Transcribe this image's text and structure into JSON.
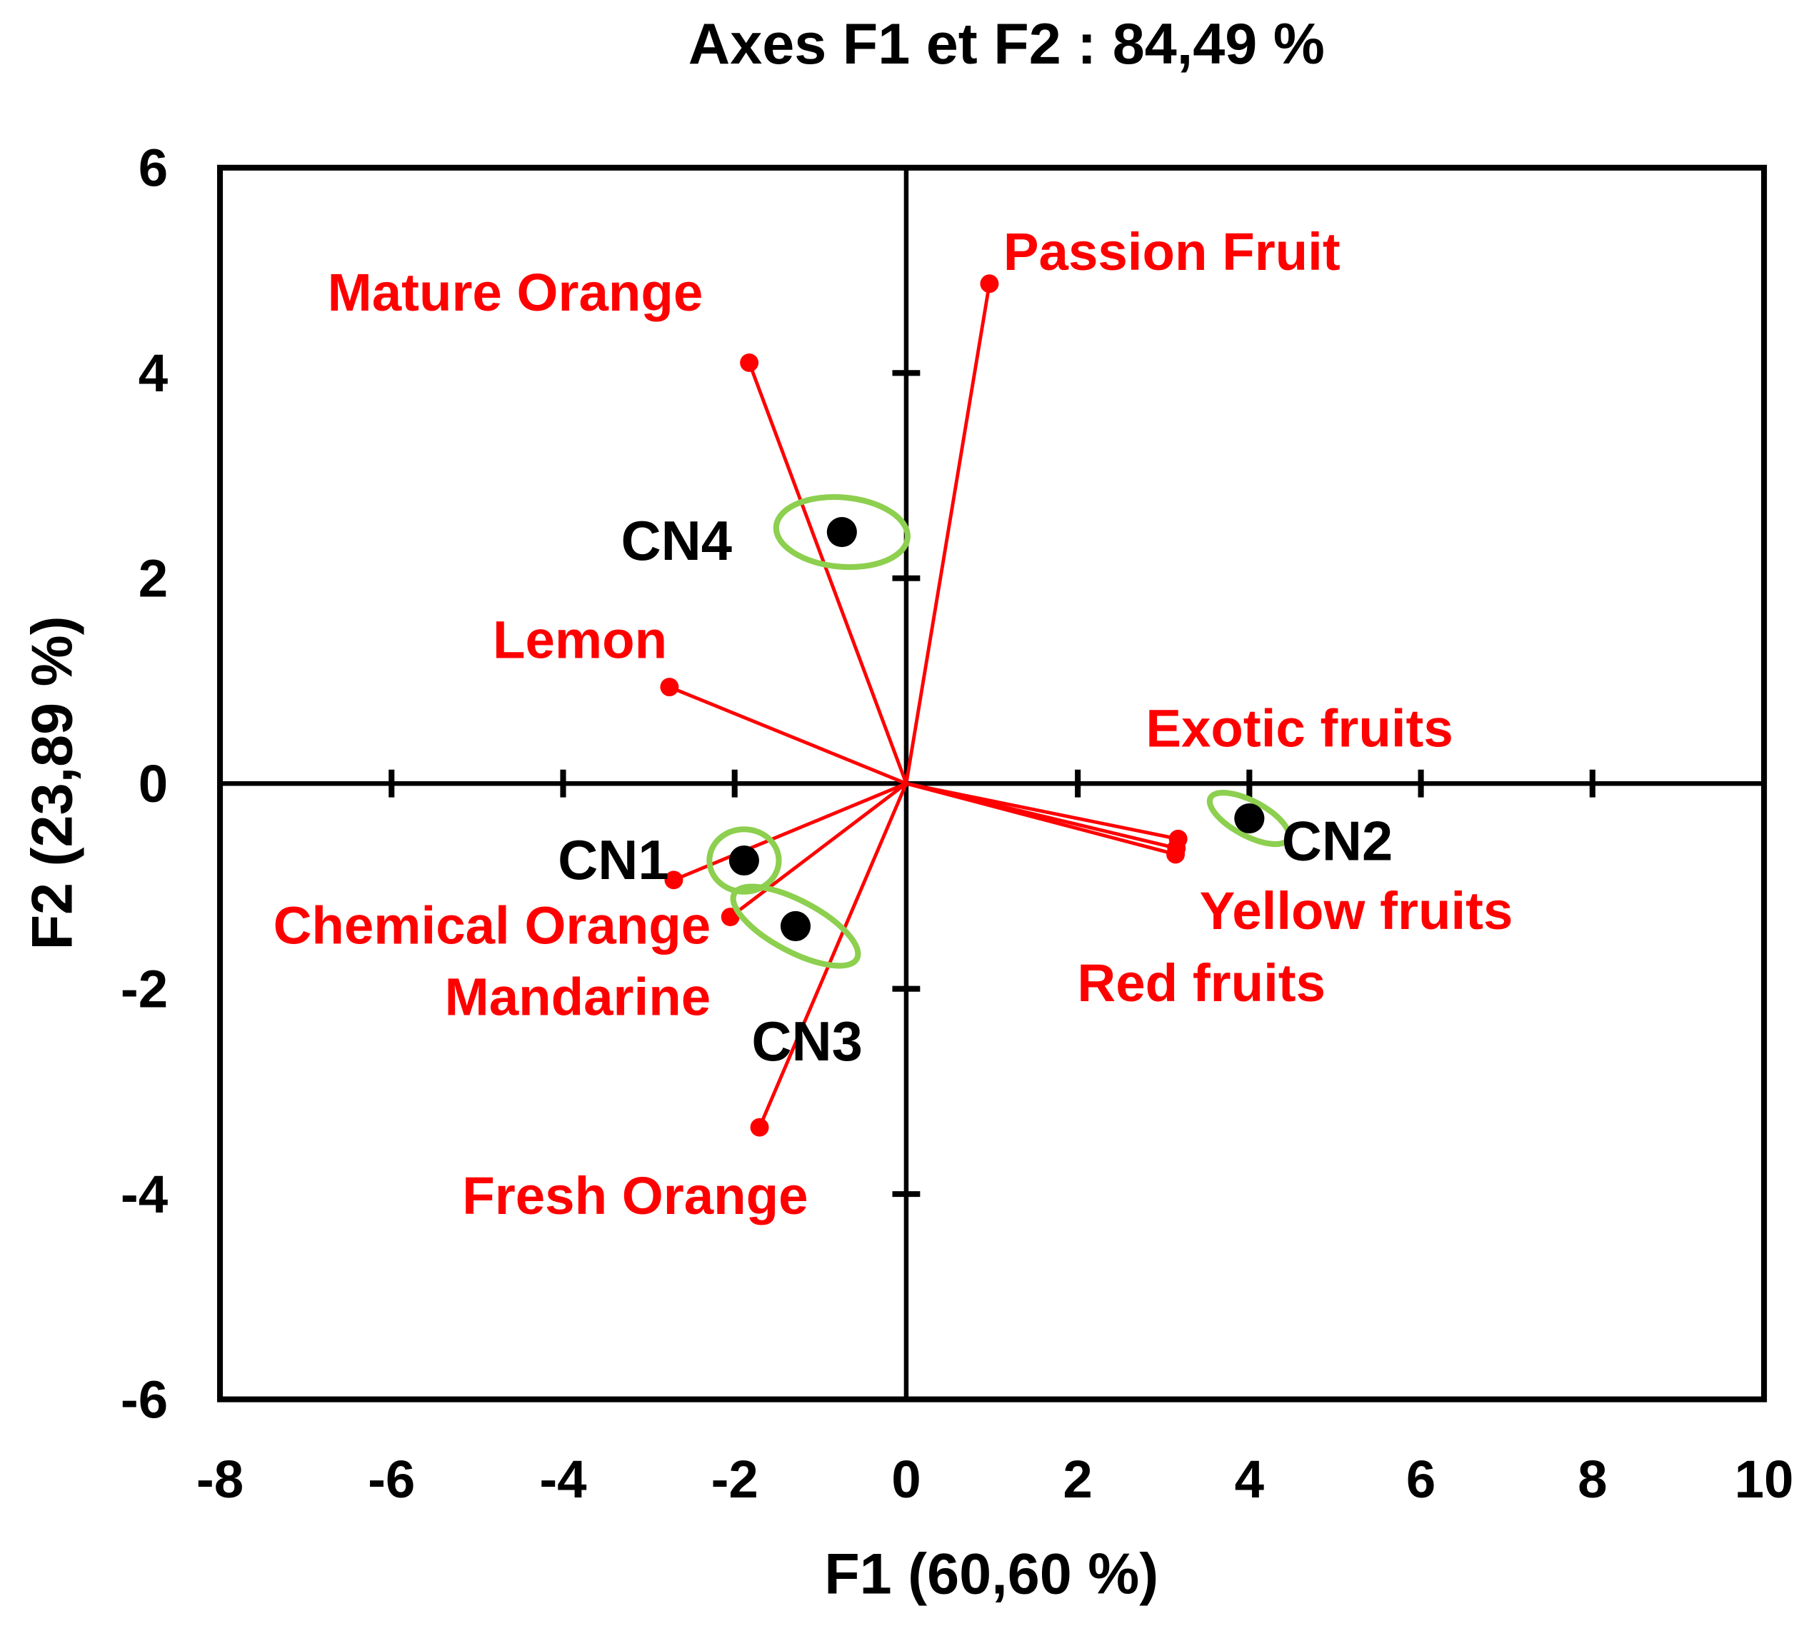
{
  "chart_data": {
    "type": "scatter",
    "title": "Axes F1 et F2 : 84,49 %",
    "xlabel": "F1 (60,60 %)",
    "ylabel": "F2 (23,89 %)",
    "xlim": [
      -8,
      10
    ],
    "ylim": [
      -6,
      6
    ],
    "xticks": [
      "-8",
      "-6",
      "-4",
      "-2",
      "0",
      "2",
      "4",
      "6",
      "8",
      "10"
    ],
    "yticks": [
      "-6",
      "-4",
      "-2",
      "0",
      "2",
      "4",
      "6"
    ],
    "grid": false,
    "variables": {
      "color": "#ff0000",
      "points": [
        {
          "label": "Passion Fruit",
          "x": 0.97,
          "y": 4.87
        },
        {
          "label": "Mature Orange",
          "x": -1.83,
          "y": 4.1
        },
        {
          "label": "Lemon",
          "x": -2.76,
          "y": 0.94
        },
        {
          "label": "Chemical Orange",
          "x": -2.71,
          "y": -0.94
        },
        {
          "label": "Mandarine",
          "x": -2.05,
          "y": -1.3
        },
        {
          "label": "Fresh Orange",
          "x": -1.71,
          "y": -3.35
        },
        {
          "label": "Exotic fruits",
          "x": 3.17,
          "y": -0.54
        },
        {
          "label": "Yellow  fruits",
          "x": 3.15,
          "y": -0.63
        },
        {
          "label": "Red fruits",
          "x": 3.14,
          "y": -0.69
        }
      ]
    },
    "observations": {
      "color": "#000000",
      "ellipse_color": "#8dcf4f",
      "points": [
        {
          "label": "CN1",
          "x": -1.89,
          "y": -0.75
        },
        {
          "label": "CN2",
          "x": 4.0,
          "y": -0.34
        },
        {
          "label": "CN3",
          "x": -1.29,
          "y": -1.39
        },
        {
          "label": "CN4",
          "x": -0.75,
          "y": 2.45
        }
      ]
    }
  }
}
